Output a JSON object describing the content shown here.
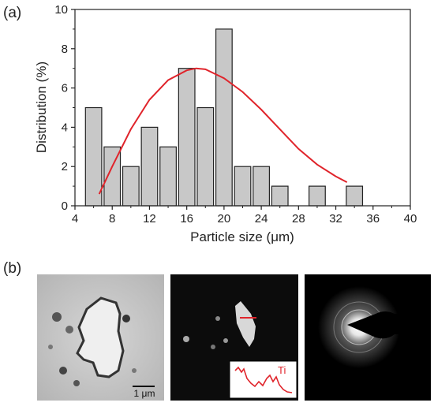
{
  "panel_a_label": "(a)",
  "panel_b_label": "(b)",
  "chart_data": {
    "type": "bar",
    "title": "",
    "xlabel": "Particle size (μm)",
    "ylabel": "Distribution (%)",
    "xlim": [
      4,
      40
    ],
    "ylim": [
      0,
      10
    ],
    "xticks": [
      4,
      8,
      12,
      16,
      20,
      24,
      28,
      32,
      36,
      40
    ],
    "yticks": [
      0,
      2,
      4,
      6,
      8,
      10
    ],
    "bin_width": 2,
    "bins": [
      {
        "center": 6,
        "value": 5
      },
      {
        "center": 8,
        "value": 3
      },
      {
        "center": 10,
        "value": 2
      },
      {
        "center": 12,
        "value": 4
      },
      {
        "center": 14,
        "value": 3
      },
      {
        "center": 16,
        "value": 7
      },
      {
        "center": 18,
        "value": 5
      },
      {
        "center": 20,
        "value": 9
      },
      {
        "center": 22,
        "value": 2
      },
      {
        "center": 24,
        "value": 2
      },
      {
        "center": 26,
        "value": 1
      },
      {
        "center": 30,
        "value": 1
      },
      {
        "center": 34,
        "value": 1
      }
    ],
    "bar_color": "#c8c8c8",
    "fit_curve": {
      "color": "#e0242b",
      "points": [
        [
          6.6,
          0.6
        ],
        [
          8,
          2.0
        ],
        [
          10,
          3.9
        ],
        [
          12,
          5.4
        ],
        [
          14,
          6.4
        ],
        [
          16,
          6.9
        ],
        [
          17,
          7.0
        ],
        [
          18,
          6.95
        ],
        [
          20,
          6.5
        ],
        [
          22,
          5.8
        ],
        [
          24,
          4.9
        ],
        [
          26,
          3.9
        ],
        [
          28,
          2.9
        ],
        [
          30,
          2.1
        ],
        [
          32,
          1.5
        ],
        [
          33.2,
          1.2
        ]
      ]
    }
  },
  "micrographs": {
    "scale_bar_label": "1 μm",
    "inset_label": "Ti",
    "inset_color": "#e0242b"
  }
}
